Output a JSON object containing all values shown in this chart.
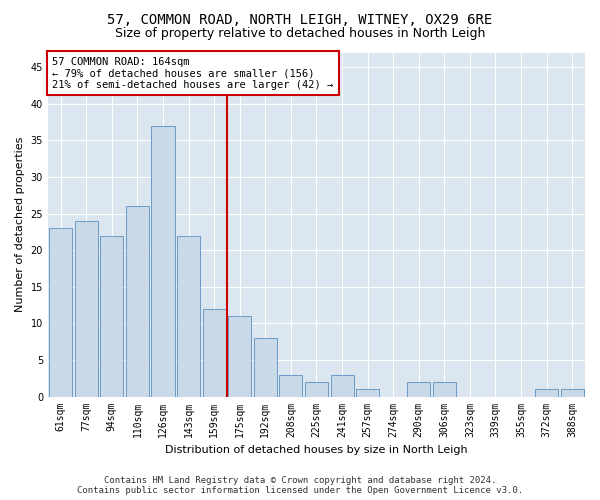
{
  "title": "57, COMMON ROAD, NORTH LEIGH, WITNEY, OX29 6RE",
  "subtitle": "Size of property relative to detached houses in North Leigh",
  "xlabel": "Distribution of detached houses by size in North Leigh",
  "ylabel": "Number of detached properties",
  "categories": [
    "61sqm",
    "77sqm",
    "94sqm",
    "110sqm",
    "126sqm",
    "143sqm",
    "159sqm",
    "175sqm",
    "192sqm",
    "208sqm",
    "225sqm",
    "241sqm",
    "257sqm",
    "274sqm",
    "290sqm",
    "306sqm",
    "323sqm",
    "339sqm",
    "355sqm",
    "372sqm",
    "388sqm"
  ],
  "values": [
    23,
    24,
    22,
    26,
    37,
    22,
    12,
    11,
    8,
    3,
    2,
    3,
    1,
    0,
    2,
    2,
    0,
    0,
    0,
    1,
    1
  ],
  "bar_color": "#c9d9e8",
  "bar_edge_color": "#5a8fc0",
  "vline_x_index": 6,
  "vline_color": "#cc0000",
  "annotation_text": "57 COMMON ROAD: 164sqm\n← 79% of detached houses are smaller (156)\n21% of semi-detached houses are larger (42) →",
  "annotation_box_facecolor": "#ffffff",
  "annotation_box_edgecolor": "#cc0000",
  "ylim": [
    0,
    47
  ],
  "yticks": [
    0,
    5,
    10,
    15,
    20,
    25,
    30,
    35,
    40,
    45
  ],
  "footer_line1": "Contains HM Land Registry data © Crown copyright and database right 2024.",
  "footer_line2": "Contains public sector information licensed under the Open Government Licence v3.0.",
  "plot_bg_color": "#dce6f0",
  "title_fontsize": 10,
  "subtitle_fontsize": 9,
  "axis_label_fontsize": 8,
  "tick_fontsize": 7,
  "annotation_fontsize": 7.5,
  "footer_fontsize": 6.5,
  "ylabel_fontsize": 8
}
